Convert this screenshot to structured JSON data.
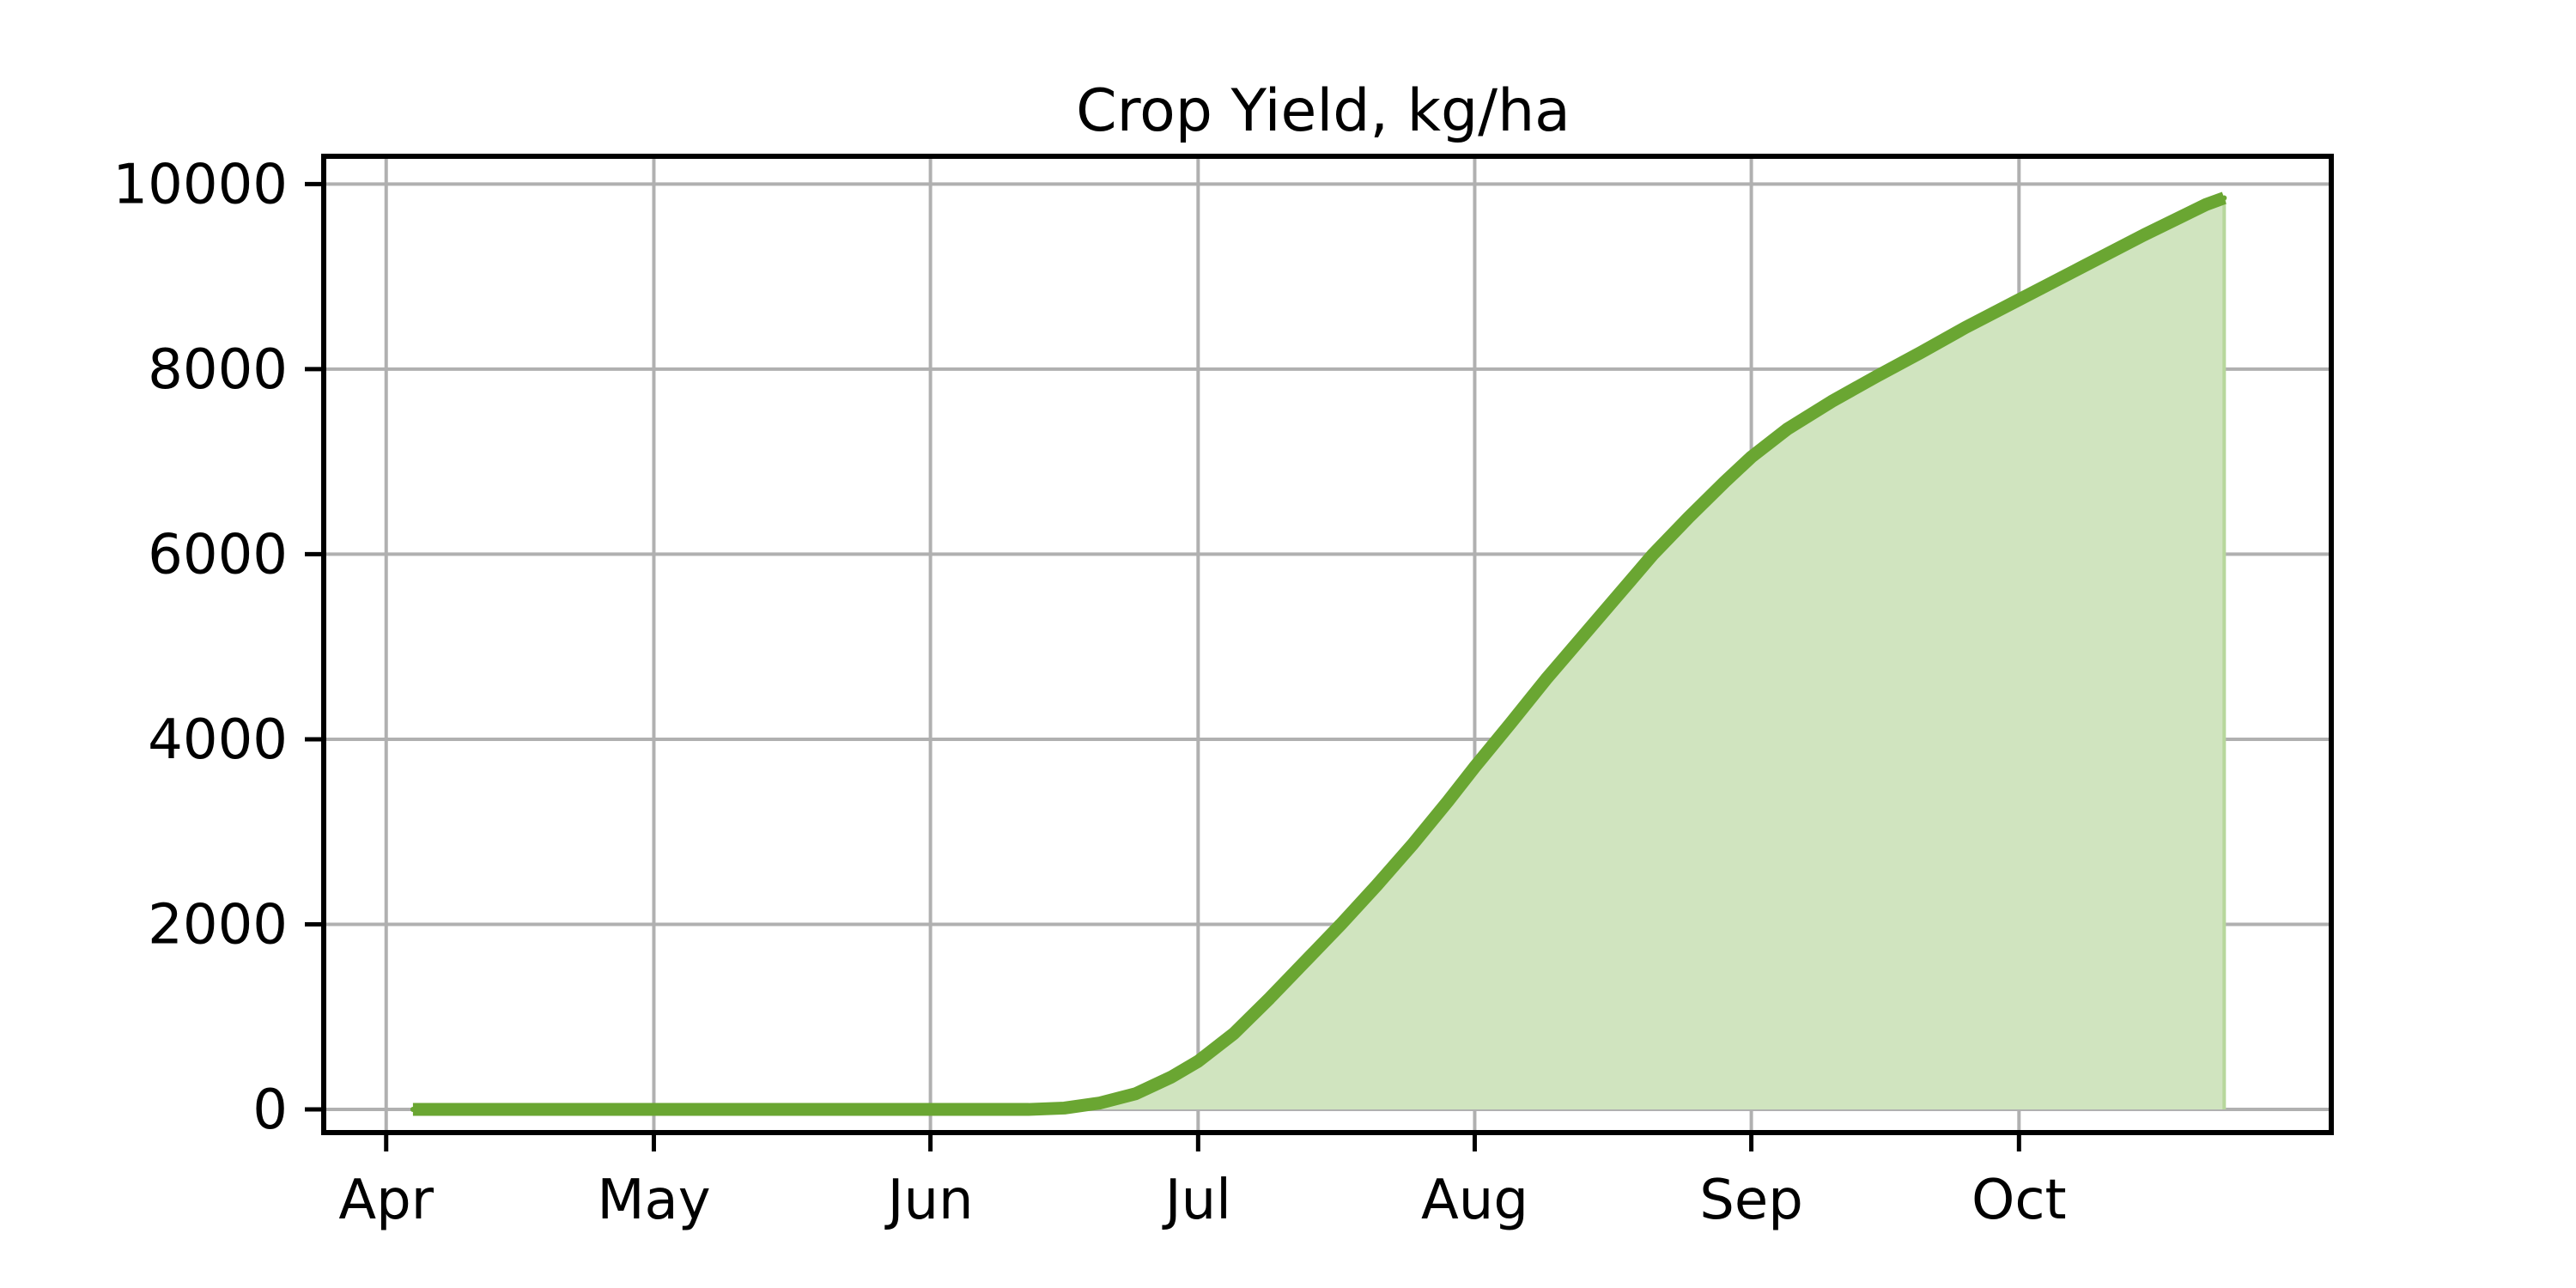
{
  "chart_data": {
    "type": "area",
    "title": "Crop Yield, kg/ha",
    "xlabel": "",
    "ylabel": "",
    "x_axis": {
      "type": "date",
      "range": [
        "2023-03-25",
        "2023-11-05"
      ],
      "ticks": [
        {
          "date": "2023-04-01",
          "label": "Apr"
        },
        {
          "date": "2023-05-01",
          "label": "May"
        },
        {
          "date": "2023-06-01",
          "label": "Jun"
        },
        {
          "date": "2023-07-01",
          "label": "Jul"
        },
        {
          "date": "2023-08-01",
          "label": "Aug"
        },
        {
          "date": "2023-09-01",
          "label": "Sep"
        },
        {
          "date": "2023-10-01",
          "label": "Oct"
        }
      ]
    },
    "y_axis": {
      "range": [
        -250,
        10300
      ],
      "ticks": [
        0,
        2000,
        4000,
        6000,
        8000,
        10000
      ]
    },
    "grid": true,
    "series": [
      {
        "color": "#6aa632",
        "fill_color": "#d0e4bf",
        "points": [
          {
            "x": "2023-04-04",
            "y": 0
          },
          {
            "x": "2023-05-01",
            "y": 0
          },
          {
            "x": "2023-06-01",
            "y": 0
          },
          {
            "x": "2023-06-12",
            "y": 0
          },
          {
            "x": "2023-06-16",
            "y": 15
          },
          {
            "x": "2023-06-20",
            "y": 70
          },
          {
            "x": "2023-06-24",
            "y": 170
          },
          {
            "x": "2023-06-28",
            "y": 350
          },
          {
            "x": "2023-07-01",
            "y": 520
          },
          {
            "x": "2023-07-05",
            "y": 820
          },
          {
            "x": "2023-07-09",
            "y": 1200
          },
          {
            "x": "2023-07-13",
            "y": 1600
          },
          {
            "x": "2023-07-17",
            "y": 2000
          },
          {
            "x": "2023-07-21",
            "y": 2420
          },
          {
            "x": "2023-07-25",
            "y": 2860
          },
          {
            "x": "2023-07-29",
            "y": 3330
          },
          {
            "x": "2023-08-01",
            "y": 3700
          },
          {
            "x": "2023-08-05",
            "y": 4170
          },
          {
            "x": "2023-08-09",
            "y": 4650
          },
          {
            "x": "2023-08-13",
            "y": 5100
          },
          {
            "x": "2023-08-17",
            "y": 5550
          },
          {
            "x": "2023-08-21",
            "y": 6000
          },
          {
            "x": "2023-08-25",
            "y": 6400
          },
          {
            "x": "2023-08-29",
            "y": 6780
          },
          {
            "x": "2023-09-01",
            "y": 7050
          },
          {
            "x": "2023-09-05",
            "y": 7350
          },
          {
            "x": "2023-09-10",
            "y": 7650
          },
          {
            "x": "2023-09-15",
            "y": 7920
          },
          {
            "x": "2023-09-20",
            "y": 8180
          },
          {
            "x": "2023-09-25",
            "y": 8450
          },
          {
            "x": "2023-10-01",
            "y": 8750
          },
          {
            "x": "2023-10-08",
            "y": 9100
          },
          {
            "x": "2023-10-15",
            "y": 9450
          },
          {
            "x": "2023-10-22",
            "y": 9780
          },
          {
            "x": "2023-10-24",
            "y": 9850
          }
        ]
      }
    ]
  }
}
